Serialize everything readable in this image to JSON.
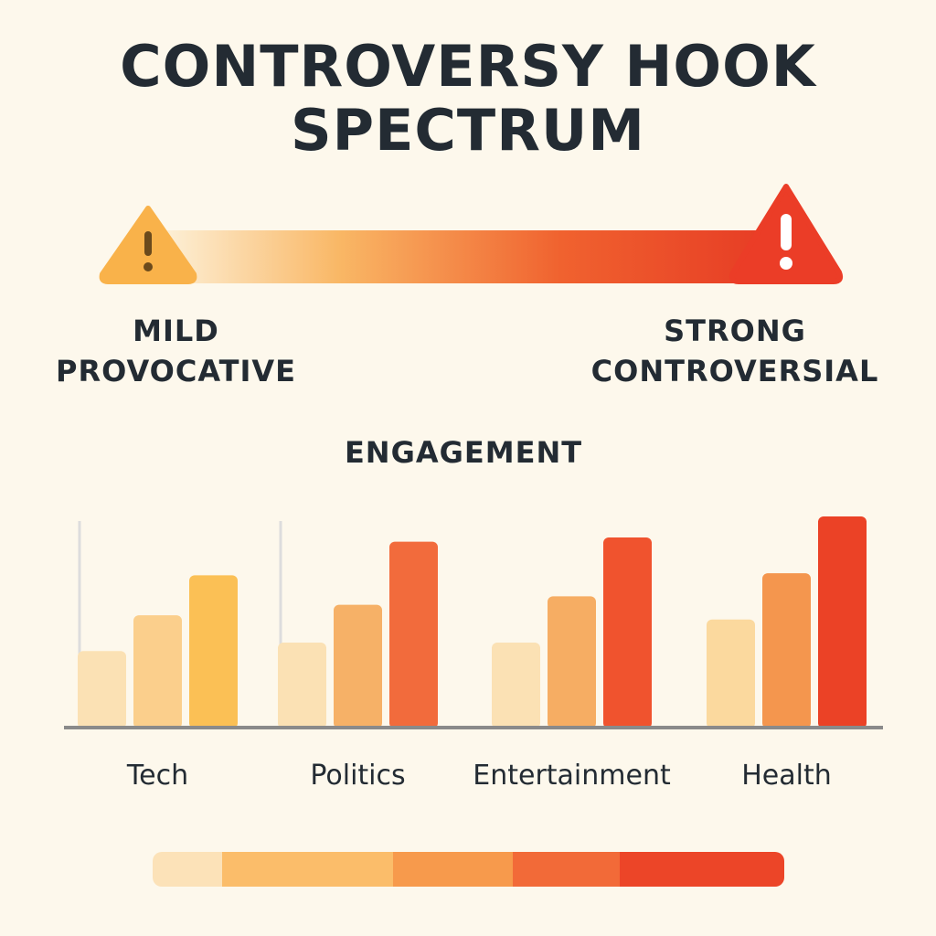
{
  "title_lines": [
    "CONTROVERSY HOOK",
    "SPECTRUM"
  ],
  "spectrum": {
    "left_label_lines": [
      "MILD",
      "PROVOCATIVE"
    ],
    "right_label_lines": [
      "STRONG",
      "CONTROVERSIAL"
    ],
    "left_icon": "warning-triangle-icon",
    "right_icon": "warning-triangle-icon",
    "gradient_colors": [
      "#fdf4df",
      "#f9b765",
      "#f0622f",
      "#e63a24"
    ],
    "left_icon_color": "#f9b24a",
    "right_icon_color": "#eb3d27"
  },
  "chart_data": {
    "type": "bar",
    "title": "ENGAGEMENT",
    "categories": [
      "Tech",
      "Politics",
      "Entertainment",
      "Health"
    ],
    "series": [
      {
        "color": "#fbe1b4",
        "values": [
          36,
          40,
          40,
          51
        ]
      },
      {
        "color": "#fbcf8c",
        "values": [
          53,
          58,
          62,
          73
        ]
      },
      {
        "color": "#fbc055",
        "values": [
          72,
          88,
          90,
          100
        ]
      }
    ],
    "bar_colors": [
      [
        "#fbe1b4",
        "#fbcf8c",
        "#fbc055"
      ],
      [
        "#fbe1b4",
        "#f6b167",
        "#f26b3c"
      ],
      [
        "#fbe1b4",
        "#f6ad63",
        "#f0532e"
      ],
      [
        "#fbd99e",
        "#f4964e",
        "#eb4226"
      ]
    ],
    "ylim": [
      0,
      100
    ],
    "axis_color": "#8a8a8a",
    "grid": false
  },
  "legend_segments": [
    {
      "color": "#fce2b8",
      "weight": 11
    },
    {
      "color": "#fbbd6a",
      "weight": 27
    },
    {
      "color": "#f79a4c",
      "weight": 19
    },
    {
      "color": "#f26a38",
      "weight": 17
    },
    {
      "color": "#ec4528",
      "weight": 26
    }
  ]
}
